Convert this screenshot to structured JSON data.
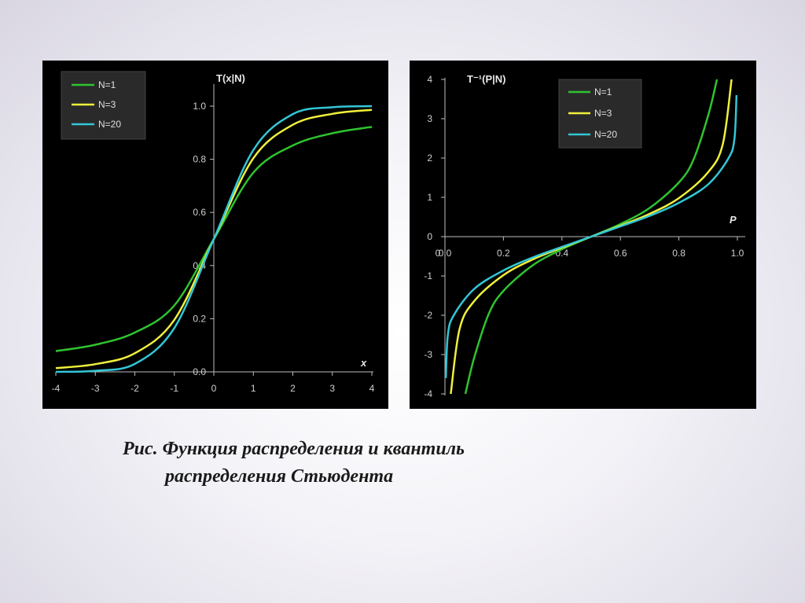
{
  "chart_data": [
    {
      "type": "line",
      "title": "",
      "ylabel": "T(x|N)",
      "xlabel": "x",
      "xlim": [
        -4,
        4
      ],
      "ylim": [
        0,
        1
      ],
      "x_ticks": [
        "-4",
        "-3",
        "-2",
        "-1",
        "0",
        "1",
        "2",
        "3",
        "4"
      ],
      "y_ticks": [
        "0.0",
        "0.2",
        "0.4",
        "0.6",
        "0.8",
        "1.0"
      ],
      "legend_position": "top-left",
      "x": [
        -4,
        -3,
        -2,
        -1,
        0,
        1,
        2,
        3,
        4
      ],
      "series": [
        {
          "name": "N=1",
          "color": "#2fc42f",
          "values": [
            0.078,
            0.102,
            0.148,
            0.25,
            0.5,
            0.75,
            0.852,
            0.898,
            0.922
          ]
        },
        {
          "name": "N=3",
          "color": "#f0f03c",
          "values": [
            0.014,
            0.029,
            0.07,
            0.196,
            0.5,
            0.804,
            0.93,
            0.971,
            0.986
          ]
        },
        {
          "name": "N=20",
          "color": "#33c6d6",
          "values": [
            0.0,
            0.004,
            0.03,
            0.165,
            0.5,
            0.835,
            0.97,
            0.996,
            1.0
          ]
        }
      ]
    },
    {
      "type": "line",
      "title": "",
      "ylabel": "T⁻¹(P|N)",
      "xlabel": "P",
      "xlim": [
        0,
        1
      ],
      "ylim": [
        -4,
        4
      ],
      "x_ticks": [
        "0.0",
        "0.2",
        "0.4",
        "0.6",
        "0.8",
        "1.0"
      ],
      "y_ticks": [
        "-4",
        "-3",
        "-2",
        "-1",
        "0",
        "1",
        "2",
        "3",
        "4"
      ],
      "x_axis_origin_label": "0",
      "legend_position": "top-right",
      "series": [
        {
          "name": "N=1",
          "color": "#2fc42f",
          "x": [
            0.07,
            0.1,
            0.15,
            0.2,
            0.3,
            0.4,
            0.5,
            0.6,
            0.7,
            0.8,
            0.85,
            0.9,
            0.93
          ],
          "values": [
            -4.0,
            -3.08,
            -1.96,
            -1.38,
            -0.73,
            -0.32,
            0.0,
            0.32,
            0.73,
            1.38,
            1.96,
            3.08,
            4.0
          ]
        },
        {
          "name": "N=3",
          "color": "#f0f03c",
          "x": [
            0.02,
            0.05,
            0.1,
            0.2,
            0.3,
            0.4,
            0.5,
            0.6,
            0.7,
            0.8,
            0.9,
            0.95,
            0.98
          ],
          "values": [
            -4.0,
            -2.35,
            -1.64,
            -0.98,
            -0.58,
            -0.28,
            0.0,
            0.28,
            0.58,
            0.98,
            1.64,
            2.35,
            4.0
          ]
        },
        {
          "name": "N=20",
          "color": "#33c6d6",
          "x": [
            0.003,
            0.01,
            0.03,
            0.1,
            0.2,
            0.3,
            0.4,
            0.5,
            0.6,
            0.7,
            0.8,
            0.9,
            0.97,
            0.99,
            0.997
          ],
          "values": [
            -3.6,
            -2.5,
            -2.0,
            -1.33,
            -0.86,
            -0.53,
            -0.26,
            0.0,
            0.26,
            0.53,
            0.86,
            1.33,
            2.0,
            2.5,
            3.6
          ]
        }
      ]
    }
  ],
  "caption": {
    "line1": "Рис. Функция распределения и квантиль",
    "line2": "распределения Стьюдента"
  }
}
